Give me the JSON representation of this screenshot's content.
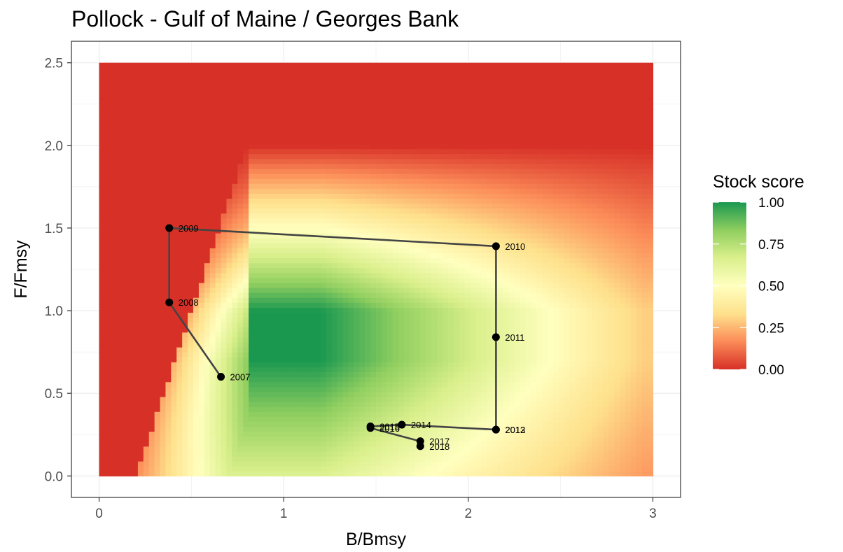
{
  "chart_data": {
    "type": "scatter",
    "title": "Pollock - Gulf of Maine / Georges Bank",
    "xlabel": "B/Bmsy",
    "ylabel": "F/Fmsy",
    "xlim": [
      -0.15,
      3.15
    ],
    "ylim": [
      -0.13,
      2.63
    ],
    "x_ticks": [
      "0",
      "1",
      "2",
      "3"
    ],
    "y_ticks": [
      "0.0",
      "0.5",
      "1.0",
      "1.5",
      "2.0",
      "2.5"
    ],
    "grid": true,
    "background": "stock score heatmap over B/Bmsy 0–3, F/Fmsy 0–2.5",
    "points": [
      {
        "label": "2007",
        "x": 0.66,
        "y": 0.6
      },
      {
        "label": "2008",
        "x": 0.38,
        "y": 1.05
      },
      {
        "label": "2009",
        "x": 0.38,
        "y": 1.5
      },
      {
        "label": "2010",
        "x": 2.15,
        "y": 1.39
      },
      {
        "label": "2011",
        "x": 2.15,
        "y": 0.84
      },
      {
        "label": "2012",
        "x": 2.15,
        "y": 0.28
      },
      {
        "label": "2013",
        "x": 2.15,
        "y": 0.28
      },
      {
        "label": "2014",
        "x": 1.64,
        "y": 0.31
      },
      {
        "label": "2015",
        "x": 1.47,
        "y": 0.3
      },
      {
        "label": "2016",
        "x": 1.47,
        "y": 0.29
      },
      {
        "label": "2017",
        "x": 1.74,
        "y": 0.21
      },
      {
        "label": "2018",
        "x": 1.74,
        "y": 0.18
      }
    ],
    "legend": {
      "title": "Stock score",
      "position": "right",
      "labels": [
        "1.00",
        "0.75",
        "0.50",
        "0.25",
        "0.00"
      ],
      "colors": [
        "#d73027",
        "#fc8d59",
        "#fee08b",
        "#ffffbf",
        "#d9ef8b",
        "#91cf60",
        "#1a9850"
      ]
    }
  }
}
